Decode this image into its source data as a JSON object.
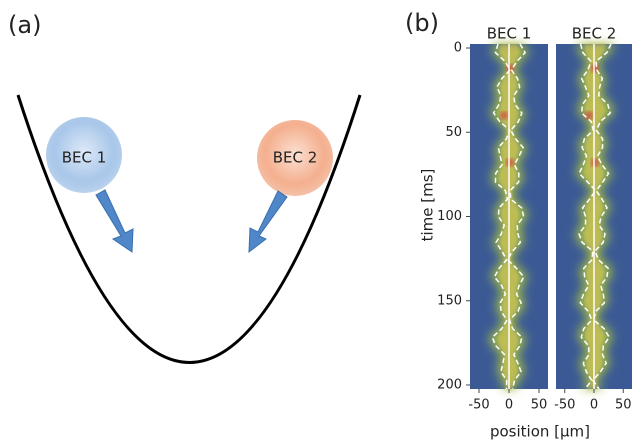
{
  "panel_a": {
    "label": "(a)",
    "balls": [
      "BEC 1",
      "BEC 2"
    ]
  },
  "panel_b": {
    "label": "(b)",
    "ylabel": "time [ms]",
    "xlabel": "position [μm]",
    "ylim": [
      0,
      200
    ],
    "yticks": [
      0,
      50,
      100,
      150,
      200
    ],
    "xlim": [
      -65,
      65
    ],
    "panels": [
      {
        "title": "BEC 1",
        "xticks": [
          -50,
          0,
          50
        ]
      },
      {
        "title": "BEC 2",
        "xticks": [
          -50,
          0,
          50
        ]
      }
    ]
  }
}
